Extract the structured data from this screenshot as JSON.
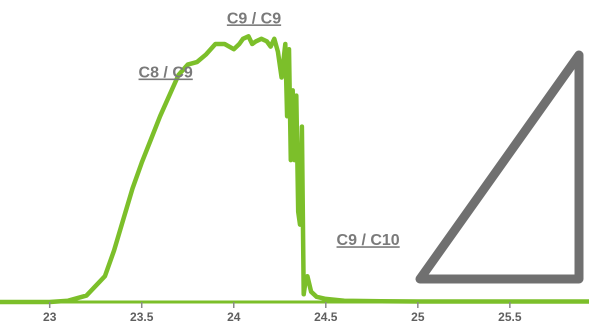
{
  "chart_data": {
    "type": "line",
    "xlabel": "",
    "ylabel": "",
    "xlim": [
      22.73,
      25.93
    ],
    "ylim": [
      0,
      100
    ],
    "xticks": [
      23,
      23.5,
      24,
      24.5,
      25,
      25.5
    ],
    "xtick_labels": [
      "23",
      "23.5",
      "24",
      "24.5",
      "25",
      "25.5"
    ],
    "grid": false,
    "series": [
      {
        "color": "#7cbf2a",
        "x": [
          22.73,
          23.0,
          23.1,
          23.2,
          23.3,
          23.35,
          23.4,
          23.45,
          23.5,
          23.55,
          23.6,
          23.65,
          23.7,
          23.75,
          23.8,
          23.85,
          23.9,
          23.95,
          24.0,
          24.03,
          24.05,
          24.08,
          24.1,
          24.12,
          24.15,
          24.18,
          24.2,
          24.22,
          24.24,
          24.26,
          24.28,
          24.29,
          24.3,
          24.31,
          24.32,
          24.33,
          24.34,
          24.35,
          24.36,
          24.37,
          24.38,
          24.39,
          24.4,
          24.42,
          24.45,
          24.5,
          24.6,
          24.8,
          25.0,
          25.5,
          25.93
        ],
        "y": [
          0.0,
          0.0,
          0.5,
          2.5,
          10.0,
          20.0,
          32.0,
          44.0,
          54.0,
          63.0,
          72.0,
          80.0,
          88.0,
          92.0,
          93.0,
          96.0,
          100.0,
          100.0,
          98.0,
          100.0,
          102.0,
          103.0,
          100.0,
          101.0,
          102.0,
          101.0,
          99.0,
          102.0,
          97.0,
          87.0,
          100.0,
          72.0,
          98.0,
          55.0,
          82.0,
          55.0,
          80.0,
          35.0,
          30.0,
          68.0,
          3.0,
          8.0,
          10.0,
          4.0,
          2.0,
          1.2,
          0.5,
          0.3,
          0.2,
          0.2,
          0.2
        ]
      }
    ],
    "annotations": [
      {
        "text": "C8 / C9",
        "x": 23.63,
        "y": 87
      },
      {
        "text": "C9 / C9",
        "x": 24.11,
        "y": 108
      },
      {
        "text": "C9 / C10",
        "x": 24.73,
        "y": 22
      }
    ],
    "decoration": {
      "shape": "right-triangle-outline",
      "color": "#707070"
    }
  }
}
